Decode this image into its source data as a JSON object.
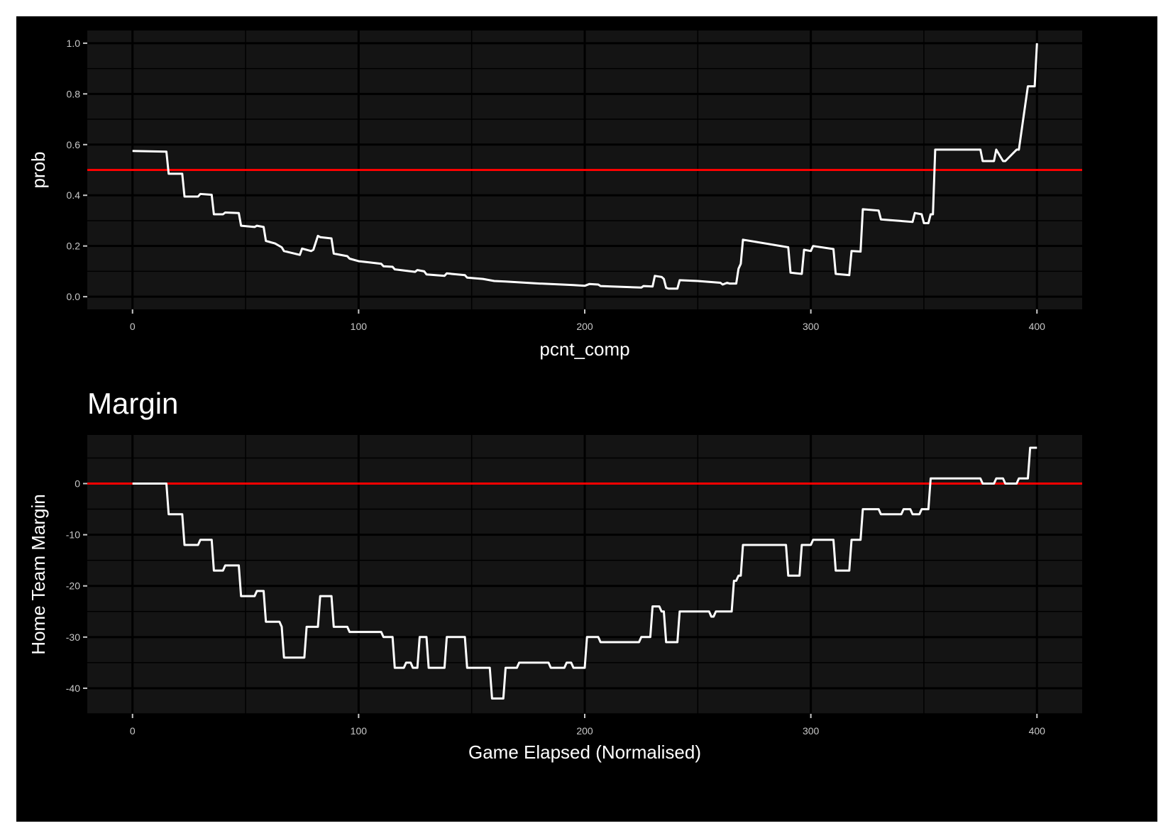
{
  "chart_data": [
    {
      "type": "line",
      "title": "",
      "xlabel": "pcnt_comp",
      "ylabel": "prob",
      "xlim": [
        -20,
        420
      ],
      "ylim": [
        -0.05,
        1.05
      ],
      "x_ticks": [
        0,
        100,
        200,
        300,
        400
      ],
      "x_tick_labels": [
        "0",
        "100",
        "200",
        "300",
        "400"
      ],
      "y_ticks": [
        0.0,
        0.2,
        0.4,
        0.6,
        0.8,
        1.0
      ],
      "y_tick_labels": [
        "0.0",
        "0.2",
        "0.4",
        "0.6",
        "0.8",
        "1.0"
      ],
      "grid": true,
      "background": "#141414",
      "line_color": "#ffffff",
      "reference_line": {
        "y": 0.5,
        "color": "#ff0000"
      },
      "series": [
        {
          "x": [
            0,
            15,
            16,
            22,
            23,
            29,
            30,
            35,
            36,
            40,
            41,
            47,
            48,
            54,
            55,
            58,
            59,
            63,
            66,
            67,
            74,
            75,
            79,
            80,
            82,
            83,
            88,
            89,
            95,
            96,
            100,
            105,
            110,
            111,
            115,
            116,
            125,
            126,
            129,
            130,
            138,
            139,
            147,
            148,
            155,
            158,
            160,
            165,
            180,
            190,
            195,
            200,
            202,
            206,
            207,
            212,
            225,
            226,
            230,
            231,
            234,
            235,
            236,
            237,
            241,
            242,
            250,
            260,
            261,
            263,
            264,
            267,
            268,
            269,
            270,
            290,
            291,
            296,
            297,
            300,
            301,
            310,
            311,
            317,
            318,
            322,
            323,
            330,
            331,
            345,
            346,
            349,
            350,
            352,
            353,
            354,
            355,
            375,
            376,
            381,
            382,
            385,
            386,
            391,
            392,
            396,
            397,
            399,
            400
          ],
          "y": [
            0.575,
            0.572,
            0.485,
            0.485,
            0.395,
            0.395,
            0.405,
            0.402,
            0.325,
            0.325,
            0.332,
            0.33,
            0.28,
            0.275,
            0.28,
            0.275,
            0.22,
            0.21,
            0.195,
            0.18,
            0.165,
            0.19,
            0.18,
            0.185,
            0.24,
            0.235,
            0.23,
            0.17,
            0.16,
            0.15,
            0.14,
            0.135,
            0.13,
            0.12,
            0.118,
            0.108,
            0.098,
            0.105,
            0.1,
            0.088,
            0.082,
            0.092,
            0.085,
            0.075,
            0.07,
            0.065,
            0.062,
            0.06,
            0.052,
            0.048,
            0.046,
            0.043,
            0.05,
            0.048,
            0.042,
            0.04,
            0.036,
            0.042,
            0.04,
            0.082,
            0.078,
            0.07,
            0.035,
            0.032,
            0.032,
            0.065,
            0.062,
            0.055,
            0.048,
            0.055,
            0.052,
            0.052,
            0.11,
            0.13,
            0.225,
            0.195,
            0.095,
            0.09,
            0.185,
            0.18,
            0.2,
            0.188,
            0.09,
            0.085,
            0.18,
            0.178,
            0.345,
            0.34,
            0.305,
            0.295,
            0.33,
            0.325,
            0.29,
            0.29,
            0.325,
            0.325,
            0.58,
            0.58,
            0.535,
            0.535,
            0.58,
            0.535,
            0.535,
            0.58,
            0.58,
            0.83,
            0.83,
            0.83,
            1.0
          ]
        }
      ]
    },
    {
      "type": "line",
      "title": "Margin",
      "xlabel": "Game Elapsed (Normalised)",
      "ylabel": "Home Team Margin",
      "xlim": [
        -20,
        420
      ],
      "ylim": [
        -45,
        9.5
      ],
      "x_ticks": [
        0,
        100,
        200,
        300,
        400
      ],
      "x_tick_labels": [
        "0",
        "100",
        "200",
        "300",
        "400"
      ],
      "y_ticks": [
        -40,
        -30,
        -20,
        -10,
        0
      ],
      "y_tick_labels": [
        "-40",
        "-30",
        "-20",
        "-10",
        "0"
      ],
      "grid": true,
      "background": "#141414",
      "line_color": "#ffffff",
      "reference_line": {
        "y": 0,
        "color": "#ff0000"
      },
      "series": [
        {
          "x": [
            0,
            15,
            16,
            22,
            23,
            29,
            30,
            35,
            36,
            40,
            41,
            47,
            48,
            54,
            55,
            58,
            59,
            65,
            66,
            67,
            76,
            77,
            82,
            83,
            88,
            89,
            95,
            96,
            110,
            111,
            115,
            116,
            120,
            121,
            123,
            124,
            126,
            127,
            130,
            131,
            138,
            139,
            147,
            148,
            158,
            159,
            164,
            165,
            170,
            171,
            184,
            185,
            191,
            192,
            194,
            195,
            200,
            201,
            206,
            207,
            224,
            225,
            229,
            230,
            233,
            234,
            235,
            236,
            241,
            242,
            255,
            256,
            257,
            258,
            262,
            263,
            265,
            266,
            267,
            268,
            269,
            270,
            289,
            290,
            295,
            296,
            300,
            301,
            310,
            311,
            317,
            318,
            322,
            323,
            330,
            331,
            340,
            341,
            344,
            345,
            348,
            349,
            352,
            353,
            354,
            355,
            375,
            376,
            381,
            382,
            385,
            386,
            391,
            392,
            396,
            397,
            400
          ],
          "y": [
            0,
            0,
            -6,
            -6,
            -12,
            -12,
            -11,
            -11,
            -17,
            -17,
            -16,
            -16,
            -22,
            -22,
            -21,
            -21,
            -27,
            -27,
            -28,
            -34,
            -34,
            -28,
            -28,
            -22,
            -22,
            -28,
            -28,
            -29,
            -29,
            -30,
            -30,
            -36,
            -36,
            -35,
            -35,
            -36,
            -36,
            -30,
            -30,
            -36,
            -36,
            -30,
            -30,
            -36,
            -36,
            -42,
            -42,
            -36,
            -36,
            -35,
            -35,
            -36,
            -36,
            -35,
            -35,
            -36,
            -36,
            -30,
            -30,
            -31,
            -31,
            -30,
            -30,
            -24,
            -24,
            -25,
            -25,
            -31,
            -31,
            -25,
            -25,
            -26,
            -26,
            -25,
            -25,
            -25,
            -25,
            -19,
            -19,
            -18,
            -18,
            -12,
            -12,
            -18,
            -18,
            -12,
            -12,
            -11,
            -11,
            -17,
            -17,
            -11,
            -11,
            -5,
            -5,
            -6,
            -6,
            -5,
            -5,
            -6,
            -6,
            -5,
            -5,
            1,
            1,
            1,
            1,
            0,
            0,
            1,
            1,
            0,
            0,
            1,
            1,
            7,
            7
          ]
        }
      ]
    }
  ]
}
